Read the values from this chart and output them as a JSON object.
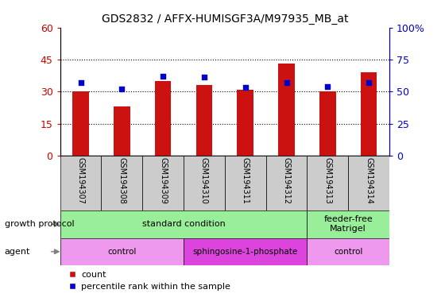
{
  "title": "GDS2832 / AFFX-HUMISGF3A/M97935_MB_at",
  "samples": [
    "GSM194307",
    "GSM194308",
    "GSM194309",
    "GSM194310",
    "GSM194311",
    "GSM194312",
    "GSM194313",
    "GSM194314"
  ],
  "counts": [
    30,
    23,
    35,
    33,
    31,
    43,
    30,
    39
  ],
  "percentile_ranks": [
    57,
    52,
    62,
    61,
    53,
    57,
    54,
    57
  ],
  "ylim_left": [
    0,
    60
  ],
  "ylim_right": [
    0,
    100
  ],
  "yticks_left": [
    0,
    15,
    30,
    45,
    60
  ],
  "yticks_right": [
    0,
    25,
    50,
    75,
    100
  ],
  "ytick_labels_left": [
    "0",
    "15",
    "30",
    "45",
    "60"
  ],
  "ytick_labels_right": [
    "0",
    "25",
    "50",
    "75",
    "100%"
  ],
  "bar_color": "#cc1111",
  "dot_color": "#0000cc",
  "sample_box_color": "#cccccc",
  "growth_groups": [
    {
      "label": "standard condition",
      "start": 0,
      "end": 5,
      "color": "#99ee99"
    },
    {
      "label": "feeder-free\nMatrigel",
      "start": 6,
      "end": 7,
      "color": "#99ee99"
    }
  ],
  "agent_groups": [
    {
      "label": "control",
      "start": 0,
      "end": 2,
      "color": "#ee99ee"
    },
    {
      "label": "sphingosine-1-phosphate",
      "start": 3,
      "end": 5,
      "color": "#dd44dd"
    },
    {
      "label": "control",
      "start": 6,
      "end": 7,
      "color": "#ee99ee"
    }
  ],
  "row_label_growth": "growth protocol",
  "row_label_agent": "agent",
  "legend_count_label": "count",
  "legend_pct_label": "percentile rank within the sample",
  "tick_color_left": "#cc0000",
  "tick_color_right": "#0000cc",
  "grid_yticks": [
    15,
    30,
    45
  ]
}
